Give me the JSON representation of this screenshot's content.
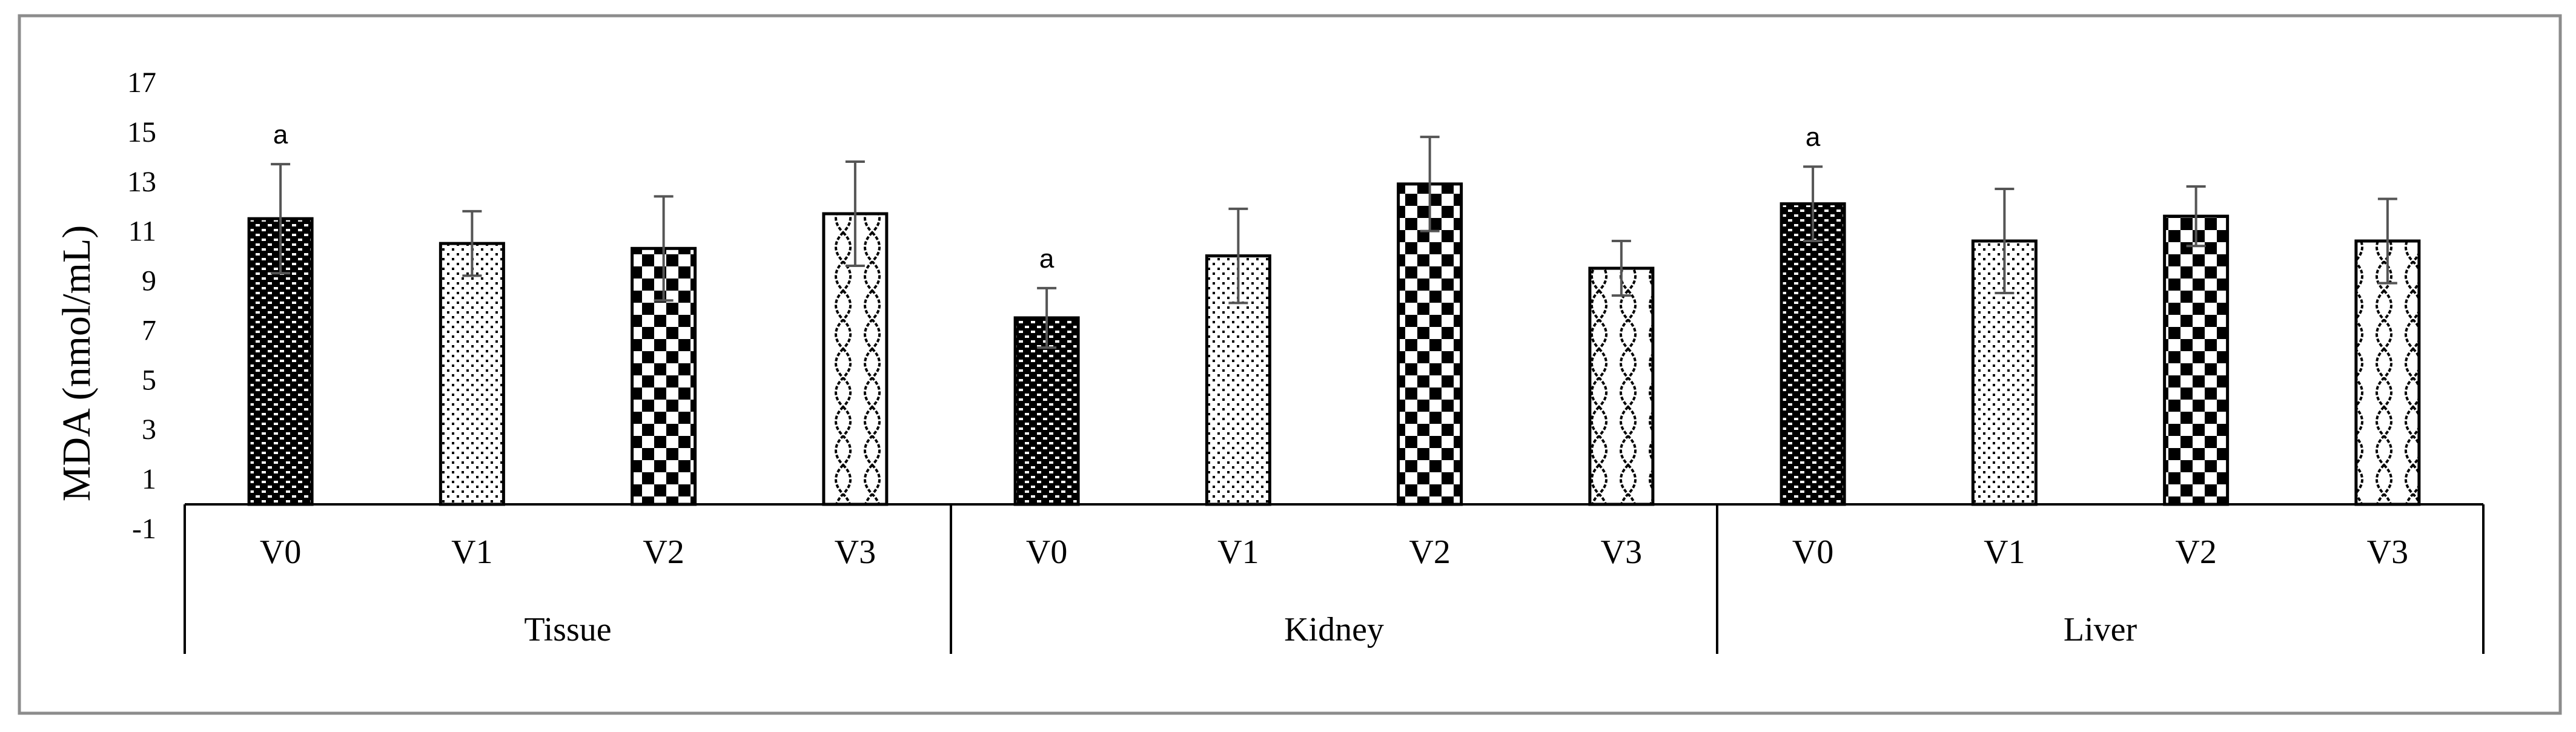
{
  "chart_data": {
    "type": "bar",
    "title": "",
    "xlabel": "",
    "ylabel": "MDA (nmol/mL)",
    "ylim": [
      -1,
      17
    ],
    "yticks": [
      -1,
      1,
      3,
      5,
      7,
      9,
      11,
      13,
      15,
      17
    ],
    "grid": false,
    "groups": [
      {
        "name": "Tissue",
        "bars": [
          {
            "label": "V0",
            "value": 11.5,
            "error": 2.2,
            "pattern": "brick",
            "annotation": "a"
          },
          {
            "label": "V1",
            "value": 10.5,
            "error": 1.3,
            "pattern": "dots",
            "annotation": ""
          },
          {
            "label": "V2",
            "value": 10.3,
            "error": 2.1,
            "pattern": "checker",
            "annotation": ""
          },
          {
            "label": "V3",
            "value": 11.7,
            "error": 2.1,
            "pattern": "wave",
            "annotation": ""
          }
        ]
      },
      {
        "name": "Kidney",
        "bars": [
          {
            "label": "V0",
            "value": 7.5,
            "error": 1.2,
            "pattern": "brick",
            "annotation": "a"
          },
          {
            "label": "V1",
            "value": 10.0,
            "error": 1.9,
            "pattern": "dots",
            "annotation": ""
          },
          {
            "label": "V2",
            "value": 12.9,
            "error": 1.9,
            "pattern": "checker",
            "annotation": ""
          },
          {
            "label": "V3",
            "value": 9.5,
            "error": 1.1,
            "pattern": "wave",
            "annotation": ""
          }
        ]
      },
      {
        "name": "Liver",
        "bars": [
          {
            "label": "V0",
            "value": 12.1,
            "error": 1.5,
            "pattern": "brick",
            "annotation": "a"
          },
          {
            "label": "V1",
            "value": 10.6,
            "error": 2.1,
            "pattern": "dots",
            "annotation": ""
          },
          {
            "label": "V2",
            "value": 11.6,
            "error": 1.2,
            "pattern": "checker",
            "annotation": ""
          },
          {
            "label": "V3",
            "value": 10.6,
            "error": 1.7,
            "pattern": "wave",
            "annotation": ""
          }
        ]
      }
    ]
  },
  "colors": {
    "ink": "#000000",
    "fill": "#ffffff",
    "frame": "#8c8c8c",
    "errorbar": "#555555"
  }
}
